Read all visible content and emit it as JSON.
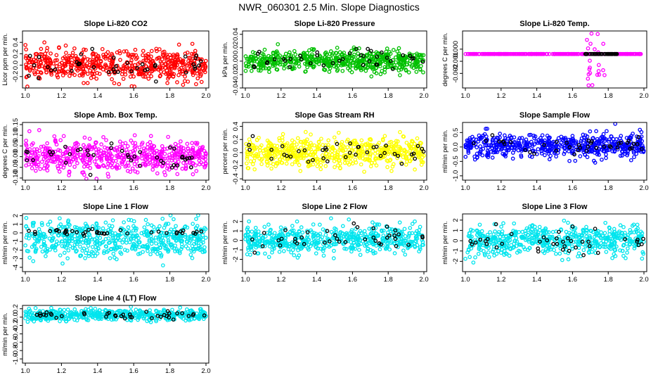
{
  "page_title": "NWR_060301  2.5 Min. Slope Diagnostics",
  "colors": {
    "background": "#ffffff",
    "reference_points": "#000000"
  },
  "chart_data": [
    {
      "type": "scatter",
      "title": "Slope Li-820 CO2",
      "ylabel": "Licor ppm per min.",
      "color": "#ff0000",
      "xlim": [
        1.0,
        2.0
      ],
      "ylim": [
        -0.4,
        0.6
      ],
      "xticks": [
        "1.0",
        "1.2",
        "1.4",
        "1.6",
        "1.8",
        "2.0"
      ],
      "yticks": [
        "-0.2",
        "0.0",
        "0.2",
        "0.4"
      ],
      "distribution": {
        "center": 0.0,
        "spread": 0.13,
        "ref_spread": 0.12,
        "n_points": 560,
        "n_ref": 40
      }
    },
    {
      "type": "scatter",
      "title": "Slope Li-820 Pressure",
      "ylabel": "kPa per min.",
      "color": "#00c000",
      "xlim": [
        1.0,
        2.0
      ],
      "ylim": [
        -0.04,
        0.045
      ],
      "xticks": [
        "1.0",
        "1.2",
        "1.4",
        "1.6",
        "1.8",
        "2.0"
      ],
      "yticks": [
        "-0.04",
        "-0.02",
        "0.00",
        "0.02",
        "0.04"
      ],
      "distribution": {
        "center": 0.0,
        "spread": 0.008,
        "ref_spread": 0.008,
        "n_points": 560,
        "n_ref": 40
      }
    },
    {
      "type": "scatter",
      "title": "Slope Li-820 Temp.",
      "ylabel": "degrees C per min.",
      "color": "#ff00ff",
      "xlim": [
        1.0,
        2.0
      ],
      "ylim": [
        -0.0032,
        0.0015
      ],
      "xticks": [
        "1.0",
        "1.2",
        "1.4",
        "1.6",
        "1.8",
        "2.0"
      ],
      "yticks": [
        "-0.002",
        "-0.001",
        "0.000"
      ],
      "distribution": {
        "center": -0.0004,
        "spread": 0.0,
        "ref_spread": 0.0,
        "n_points": 260,
        "n_ref": 40,
        "outlier_x_range": [
          1.68,
          1.78
        ],
        "outlier_y_range": [
          -0.003,
          0.0013
        ]
      }
    },
    {
      "type": "scatter",
      "title": "Slope Amb. Box Temp.",
      "ylabel": "degrees C per min.",
      "color": "#ff00ff",
      "xlim": [
        1.0,
        2.0
      ],
      "ylim": [
        -0.11,
        0.16
      ],
      "xticks": [
        "1.0",
        "1.2",
        "1.4",
        "1.6",
        "1.8",
        "2.0"
      ],
      "yticks": [
        "-0.10",
        "-0.05",
        "0.00",
        "0.05",
        "0.10",
        "0.15"
      ],
      "distribution": {
        "center": 0.005,
        "spread": 0.035,
        "ref_spread": 0.03,
        "n_points": 560,
        "n_ref": 40
      }
    },
    {
      "type": "scatter",
      "title": "Slope Gas Stream RH",
      "ylabel": "percent per min.",
      "color": "#ffff00",
      "xlim": [
        1.0,
        2.0
      ],
      "ylim": [
        -0.42,
        0.46
      ],
      "xticks": [
        "1.0",
        "1.2",
        "1.4",
        "1.6",
        "1.8",
        "2.0"
      ],
      "yticks": [
        "-0.4",
        "-0.2",
        "0.0",
        "0.2",
        "0.4"
      ],
      "distribution": {
        "center": 0.0,
        "spread": 0.11,
        "ref_spread": 0.1,
        "n_points": 560,
        "n_ref": 40
      }
    },
    {
      "type": "scatter",
      "title": "Slope Sample Flow",
      "ylabel": "ml/min per min.",
      "color": "#0000ff",
      "xlim": [
        1.0,
        2.0
      ],
      "ylim": [
        -1.15,
        0.85
      ],
      "xticks": [
        "1.0",
        "1.2",
        "1.4",
        "1.6",
        "1.8",
        "2.0"
      ],
      "yticks": [
        "-1.0",
        "-0.5",
        "0.0",
        "0.5"
      ],
      "distribution": {
        "center": 0.05,
        "spread": 0.2,
        "ref_spread": 0.15,
        "n_points": 560,
        "n_ref": 40
      }
    },
    {
      "type": "scatter",
      "title": "Slope Line 1 Flow",
      "ylabel": "ml/min per min.",
      "color": "#00e5ee",
      "xlim": [
        1.0,
        2.0
      ],
      "ylim": [
        -4.5,
        2.2
      ],
      "xticks": [
        "1.0",
        "1.2",
        "1.4",
        "1.6",
        "1.8",
        "2.0"
      ],
      "yticks": [
        "-4",
        "-3",
        "-2",
        "-1",
        "0",
        "1",
        "2"
      ],
      "distribution": {
        "center": -0.7,
        "spread": 1.0,
        "ref_spread": 0.2,
        "ref_center": 0.1,
        "n_points": 560,
        "n_ref": 40
      }
    },
    {
      "type": "scatter",
      "title": "Slope Line 2 Flow",
      "ylabel": "ml/min per min.",
      "color": "#00e5ee",
      "xlim": [
        1.0,
        2.0
      ],
      "ylim": [
        -3.3,
        2.8
      ],
      "xticks": [
        "1.0",
        "1.2",
        "1.4",
        "1.6",
        "1.8",
        "2.0"
      ],
      "yticks": [
        "-2",
        "-1",
        "0",
        "1",
        "2"
      ],
      "distribution": {
        "center": 0.1,
        "spread": 0.7,
        "ref_spread": 0.6,
        "n_points": 560,
        "n_ref": 40
      }
    },
    {
      "type": "scatter",
      "title": "Slope Line 3 Flow",
      "ylabel": "ml/min per min.",
      "color": "#00e5ee",
      "xlim": [
        1.0,
        2.0
      ],
      "ylim": [
        -3.0,
        2.6
      ],
      "xticks": [
        "1.0",
        "1.2",
        "1.4",
        "1.6",
        "1.8",
        "2.0"
      ],
      "yticks": [
        "-2",
        "-1",
        "0",
        "1",
        "2"
      ],
      "distribution": {
        "center": 0.0,
        "spread": 0.7,
        "ref_spread": 0.6,
        "n_points": 560,
        "n_ref": 40
      }
    },
    {
      "type": "scatter",
      "title": "Slope Line 4 (LT) Flow",
      "ylabel": "ml/min per min.",
      "color": "#00e5ee",
      "xlim": [
        1.0,
        2.0
      ],
      "ylim": [
        -1.1,
        0.28
      ],
      "xticks": [
        "1.0",
        "1.2",
        "1.4",
        "1.6",
        "1.8",
        "2.0"
      ],
      "yticks": [
        "-1.0",
        "-0.8",
        "-0.6",
        "-0.4",
        "-0.2",
        "0.0",
        "0.2"
      ],
      "distribution": {
        "center": 0.05,
        "spread": 0.07,
        "ref_spread": 0.06,
        "n_points": 460,
        "n_ref": 40
      }
    }
  ]
}
